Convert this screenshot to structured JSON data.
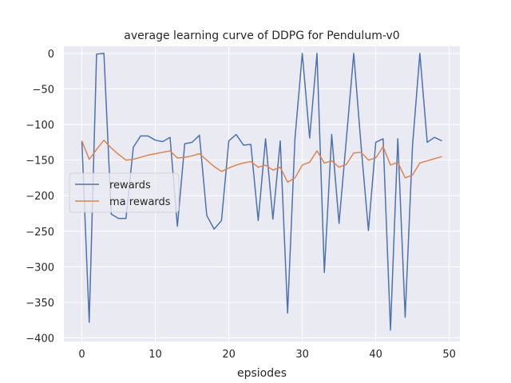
{
  "chart_data": {
    "type": "line",
    "title": "average learning curve of DDPG for Pendulum-v0",
    "xlabel": "epsiodes",
    "ylabel": "",
    "xlim": [
      -2.45,
      51.45
    ],
    "ylim": [
      -405,
      10
    ],
    "xticks": [
      0,
      10,
      20,
      30,
      40,
      50
    ],
    "yticks": [
      0,
      -50,
      -100,
      -150,
      -200,
      -250,
      -300,
      -350,
      -400
    ],
    "grid": true,
    "legend_position": "center-left",
    "background": "#eaeaf2",
    "series": [
      {
        "name": "rewards",
        "color": "#4c72b0",
        "x": [
          0,
          1,
          2,
          3,
          4,
          5,
          6,
          7,
          8,
          9,
          10,
          11,
          12,
          13,
          14,
          15,
          16,
          17,
          18,
          19,
          20,
          21,
          22,
          23,
          24,
          25,
          26,
          27,
          28,
          29,
          30,
          31,
          32,
          33,
          34,
          35,
          36,
          37,
          38,
          39,
          40,
          41,
          42,
          43,
          44,
          45,
          46,
          47,
          48,
          49
        ],
        "values": [
          -123,
          -378,
          -1,
          0,
          -226,
          -232,
          -232,
          -132,
          -116,
          -116,
          -122,
          -124,
          -118,
          -243,
          -127,
          -125,
          -115,
          -228,
          -247,
          -235,
          -123,
          -114,
          -129,
          -128,
          -235,
          -120,
          -233,
          -123,
          -365,
          -120,
          0,
          -119,
          0,
          -308,
          -114,
          -239,
          -120,
          0,
          -130,
          -249,
          -125,
          -120,
          -389,
          -120,
          -371,
          -130,
          0,
          -125,
          -118,
          -123
        ]
      },
      {
        "name": "ma rewards",
        "color": "#dd8452",
        "x": [
          0,
          1,
          2,
          3,
          4,
          5,
          6,
          7,
          8,
          9,
          10,
          11,
          12,
          13,
          14,
          15,
          16,
          17,
          18,
          19,
          20,
          21,
          22,
          23,
          24,
          25,
          26,
          27,
          28,
          29,
          30,
          31,
          32,
          33,
          34,
          35,
          36,
          37,
          38,
          39,
          40,
          41,
          42,
          43,
          44,
          45,
          46,
          47,
          48,
          49
        ],
        "values": [
          -123,
          -149,
          -135,
          -122,
          -133,
          -142,
          -150,
          -149,
          -146,
          -143,
          -141,
          -139,
          -137,
          -147,
          -146,
          -144,
          -141,
          -150,
          -159,
          -166,
          -161,
          -157,
          -154,
          -152,
          -160,
          -157,
          -164,
          -160,
          -181,
          -175,
          -157,
          -153,
          -137,
          -154,
          -151,
          -160,
          -156,
          -140,
          -139,
          -150,
          -147,
          -131,
          -157,
          -153,
          -175,
          -171,
          -154,
          -151,
          -148,
          -145
        ]
      }
    ]
  }
}
